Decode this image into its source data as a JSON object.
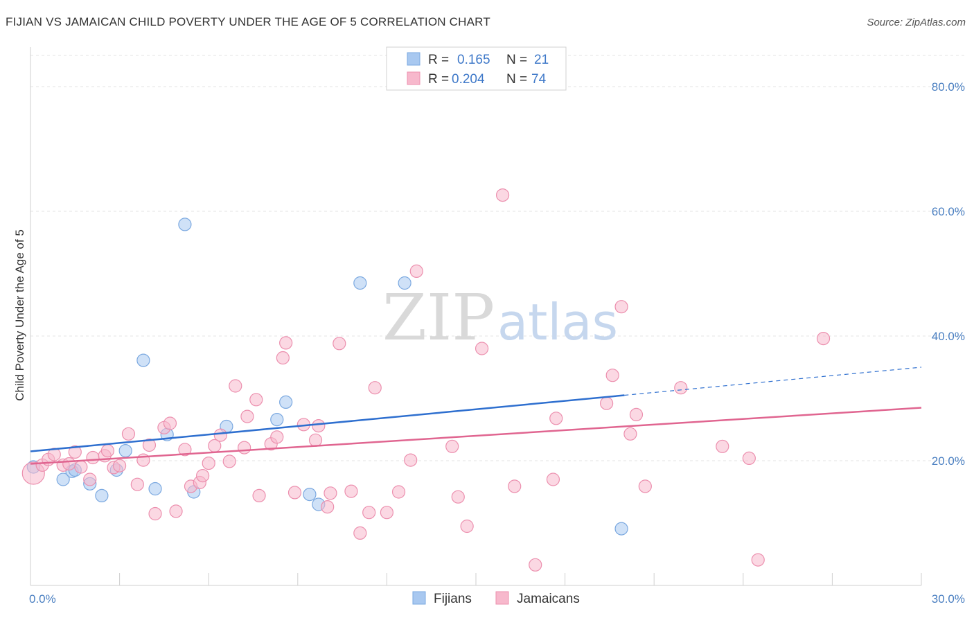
{
  "header": {
    "title": "FIJIAN VS JAMAICAN CHILD POVERTY UNDER THE AGE OF 5 CORRELATION CHART",
    "source": "Source: ZipAtlas.com"
  },
  "watermark": {
    "zip": "ZIP",
    "atlas": "atlas"
  },
  "legend": {
    "r_label": "R =",
    "n_label": "N =",
    "fijians": {
      "r": "0.165",
      "n": "21"
    },
    "jamaicans": {
      "r": "0.204",
      "n": "74"
    }
  },
  "chart_data": {
    "type": "scatter",
    "title": "FIJIAN VS JAMAICAN CHILD POVERTY UNDER THE AGE OF 5 CORRELATION CHART",
    "xlabel": "",
    "ylabel": "Child Poverty Under the Age of 5",
    "xlim": [
      0,
      30
    ],
    "ylim": [
      0,
      85
    ],
    "x_ticks": [
      "0.0%",
      "30.0%"
    ],
    "y_ticks": [
      {
        "value": 20,
        "label": "20.0%"
      },
      {
        "value": 40,
        "label": "40.0%"
      },
      {
        "value": 60,
        "label": "60.0%"
      },
      {
        "value": 80,
        "label": "80.0%"
      }
    ],
    "grid": "horizontal dashed",
    "legend_position": "top-center",
    "series": [
      {
        "name": "Fijians",
        "color": "#a8c8f0",
        "edge": "#7aa8e0",
        "line_color": "#2e6fcf",
        "trend": {
          "x0": 0,
          "y0": 21.5,
          "x1": 20,
          "y1": 30.5,
          "dash_to_x": 30,
          "dash_to_y": 35.0
        },
        "points": [
          [
            0.1,
            19.0
          ],
          [
            1.1,
            17.0
          ],
          [
            1.4,
            18.3
          ],
          [
            1.5,
            18.5
          ],
          [
            2.0,
            16.3
          ],
          [
            2.4,
            14.4
          ],
          [
            2.9,
            18.5
          ],
          [
            3.2,
            21.6
          ],
          [
            3.8,
            36.1
          ],
          [
            4.2,
            15.5
          ],
          [
            4.6,
            24.2
          ],
          [
            5.2,
            57.9
          ],
          [
            5.5,
            15.0
          ],
          [
            6.6,
            25.5
          ],
          [
            8.3,
            26.6
          ],
          [
            8.6,
            29.4
          ],
          [
            9.4,
            14.6
          ],
          [
            9.7,
            13.0
          ],
          [
            11.1,
            48.5
          ],
          [
            12.6,
            48.5
          ],
          [
            19.9,
            9.1
          ]
        ]
      },
      {
        "name": "Jamaicans",
        "color": "#f7b8cc",
        "edge": "#ec8fae",
        "line_color": "#e06590",
        "trend": {
          "x0": 0,
          "y0": 19.5,
          "x1": 30,
          "y1": 28.5
        },
        "points": [
          [
            0.1,
            18.0
          ],
          [
            0.4,
            19.3
          ],
          [
            0.6,
            20.2
          ],
          [
            0.8,
            21.0
          ],
          [
            1.1,
            19.3
          ],
          [
            1.3,
            19.5
          ],
          [
            1.5,
            21.4
          ],
          [
            1.7,
            19.0
          ],
          [
            2.0,
            17.0
          ],
          [
            2.1,
            20.5
          ],
          [
            2.5,
            20.8
          ],
          [
            2.6,
            21.6
          ],
          [
            2.8,
            18.9
          ],
          [
            3.0,
            19.2
          ],
          [
            3.3,
            24.3
          ],
          [
            3.6,
            16.2
          ],
          [
            3.8,
            20.1
          ],
          [
            4.0,
            22.5
          ],
          [
            4.2,
            11.5
          ],
          [
            4.5,
            25.3
          ],
          [
            4.7,
            26.0
          ],
          [
            4.9,
            11.9
          ],
          [
            5.2,
            21.8
          ],
          [
            5.4,
            15.9
          ],
          [
            5.7,
            16.5
          ],
          [
            5.8,
            17.6
          ],
          [
            6.0,
            19.6
          ],
          [
            6.2,
            22.4
          ],
          [
            6.4,
            24.1
          ],
          [
            6.7,
            19.9
          ],
          [
            6.9,
            32.0
          ],
          [
            7.2,
            22.1
          ],
          [
            7.3,
            27.1
          ],
          [
            7.6,
            29.8
          ],
          [
            7.7,
            14.4
          ],
          [
            8.1,
            22.7
          ],
          [
            8.3,
            23.8
          ],
          [
            8.5,
            36.5
          ],
          [
            8.6,
            38.9
          ],
          [
            8.9,
            14.9
          ],
          [
            9.2,
            25.8
          ],
          [
            9.6,
            23.3
          ],
          [
            9.7,
            25.6
          ],
          [
            10.0,
            12.6
          ],
          [
            10.1,
            14.8
          ],
          [
            10.4,
            38.8
          ],
          [
            10.8,
            15.1
          ],
          [
            11.1,
            8.4
          ],
          [
            11.4,
            11.7
          ],
          [
            11.6,
            31.7
          ],
          [
            12.0,
            11.7
          ],
          [
            12.4,
            15.0
          ],
          [
            12.8,
            20.1
          ],
          [
            13.0,
            50.4
          ],
          [
            14.2,
            22.3
          ],
          [
            14.4,
            14.2
          ],
          [
            14.7,
            9.5
          ],
          [
            15.2,
            38.0
          ],
          [
            15.9,
            62.6
          ],
          [
            16.3,
            15.9
          ],
          [
            17.0,
            3.3
          ],
          [
            17.6,
            17.0
          ],
          [
            17.7,
            26.8
          ],
          [
            19.4,
            29.2
          ],
          [
            19.6,
            33.7
          ],
          [
            19.9,
            44.7
          ],
          [
            20.2,
            24.3
          ],
          [
            20.4,
            27.4
          ],
          [
            20.7,
            15.9
          ],
          [
            21.9,
            31.7
          ],
          [
            23.3,
            22.3
          ],
          [
            24.2,
            20.4
          ],
          [
            24.5,
            4.1
          ],
          [
            26.7,
            39.6
          ]
        ]
      }
    ]
  }
}
